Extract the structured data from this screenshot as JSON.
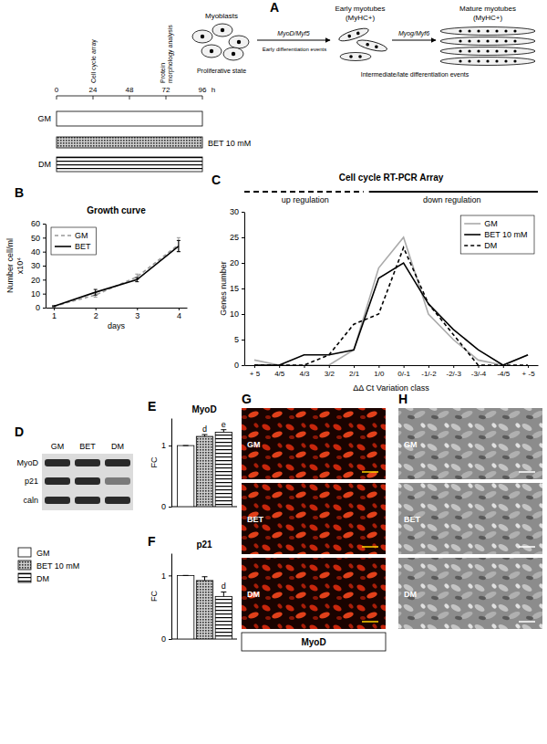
{
  "chart_data": [
    {
      "type": "line",
      "panel_label": "B",
      "title": "Growth curve",
      "x_label": "days",
      "y_label": [
        "Number cell/ml",
        "x10⁴"
      ],
      "x": [
        1,
        2,
        3,
        4
      ],
      "xlim": [
        0.8,
        4.2
      ],
      "xticks": [
        1,
        2,
        3,
        4
      ],
      "ylim": [
        0,
        60
      ],
      "yticks": [
        0,
        10,
        20,
        30,
        40,
        50,
        60
      ],
      "legend": "upper left",
      "series": [
        {
          "name": "GM",
          "color": "#999999",
          "line_style": "dashed",
          "values": [
            1,
            9,
            22,
            45
          ],
          "errors": [
            0.3,
            1.5,
            2,
            5
          ]
        },
        {
          "name": "BET",
          "color": "#000000",
          "line_style": "solid",
          "values": [
            1,
            11,
            20,
            44
          ],
          "errors": [
            0.3,
            2,
            1.5,
            4
          ]
        }
      ]
    },
    {
      "type": "line",
      "panel_label": "C",
      "title": "Cell cycle RT-PCR Array",
      "annotations": [
        "up regulation",
        "down regulation"
      ],
      "x_label": "ΔΔ Ct  Variation class",
      "y_label": "Genes number",
      "categories": [
        "+ 5",
        "4/5",
        "4/3",
        "3/2",
        "2/1",
        "1/0",
        "0/-1",
        "-1/-2",
        "-2/-3",
        "-3/-4",
        "-4/5",
        "+ -5"
      ],
      "ylim": [
        0,
        30
      ],
      "yticks": [
        0,
        5,
        10,
        15,
        20,
        25,
        30
      ],
      "legend": "upper right",
      "series": [
        {
          "name": "GM",
          "color": "#aaaaaa",
          "line_style": "solid",
          "values": [
            1,
            0,
            0,
            0,
            3,
            19,
            25,
            10,
            5,
            1,
            0,
            2
          ]
        },
        {
          "name": "BET 10 mM",
          "color": "#000000",
          "line_style": "solid",
          "values": [
            0,
            0,
            2,
            2,
            3,
            17,
            20,
            12,
            7,
            3,
            0,
            2
          ]
        },
        {
          "name": "DM",
          "color": "#000000",
          "line_style": "dashed",
          "values": [
            0,
            0,
            0,
            2,
            8,
            10,
            23,
            12,
            6,
            0,
            0,
            0
          ]
        }
      ]
    },
    {
      "type": "bar",
      "panel_label": "E",
      "title": "MyoD",
      "y_label": "FC",
      "categories": [
        "GM",
        "BET 10 mM",
        "DM"
      ],
      "values": [
        1,
        1.15,
        1.22
      ],
      "errors": [
        0,
        0.03,
        0.04
      ],
      "annotations": [
        null,
        "d",
        "e"
      ],
      "colors": [
        "#ffffff",
        "#333333",
        "#000000"
      ],
      "ylim": [
        0,
        1.45
      ],
      "yticks": [
        0,
        1
      ],
      "tick_labels": "y",
      "legend": "left"
    },
    {
      "type": "bar",
      "panel_label": "F",
      "title": "p21",
      "y_label": "FC",
      "categories": [
        "GM",
        "BET 10 mM",
        "DM"
      ],
      "values": [
        1,
        0.92,
        0.67
      ],
      "errors": [
        0,
        0.06,
        0.07
      ],
      "annotations": [
        null,
        null,
        "d"
      ],
      "colors": [
        "#ffffff",
        "#333333",
        "#000000"
      ],
      "ylim": [
        0,
        1.35
      ],
      "yticks": [
        0,
        1
      ],
      "tick_labels": "y"
    }
  ],
  "diagram": {
    "panel_label": "A",
    "stages": [
      {
        "name": "Myoblasts"
      },
      {
        "name": "Early myotubes",
        "subtitle": "(MyHC+)"
      },
      {
        "name": "Mature myotubes",
        "subtitle": "(MyHC+)"
      }
    ],
    "transitions": [
      "MyoD/Myf5",
      "Myog/Myf6"
    ],
    "notes": [
      "Proliferative state",
      "Early differentiation events",
      "Intermediate/late differentiation events"
    ],
    "timeline": {
      "ticks": [
        0,
        24,
        48,
        72,
        96
      ],
      "unit": "h",
      "events": [
        {
          "at": 24,
          "label": [
            "Cell cycle array"
          ]
        },
        {
          "at": 72,
          "label": [
            "Protein",
            "morphology analysis"
          ]
        }
      ],
      "conditions": [
        "GM",
        "BET 10 mM",
        "DM"
      ]
    }
  },
  "blot": {
    "panel_label": "D",
    "columns": [
      "GM",
      "BET",
      "DM"
    ],
    "rows": [
      "MyoD",
      "p21",
      "caln"
    ]
  },
  "images": [
    {
      "panel_label": "G",
      "labels": [
        "GM",
        "BET",
        "DM"
      ],
      "caption": "MyoD"
    },
    {
      "panel_label": "H",
      "labels": [
        "GM",
        "BET",
        "DM"
      ]
    }
  ]
}
